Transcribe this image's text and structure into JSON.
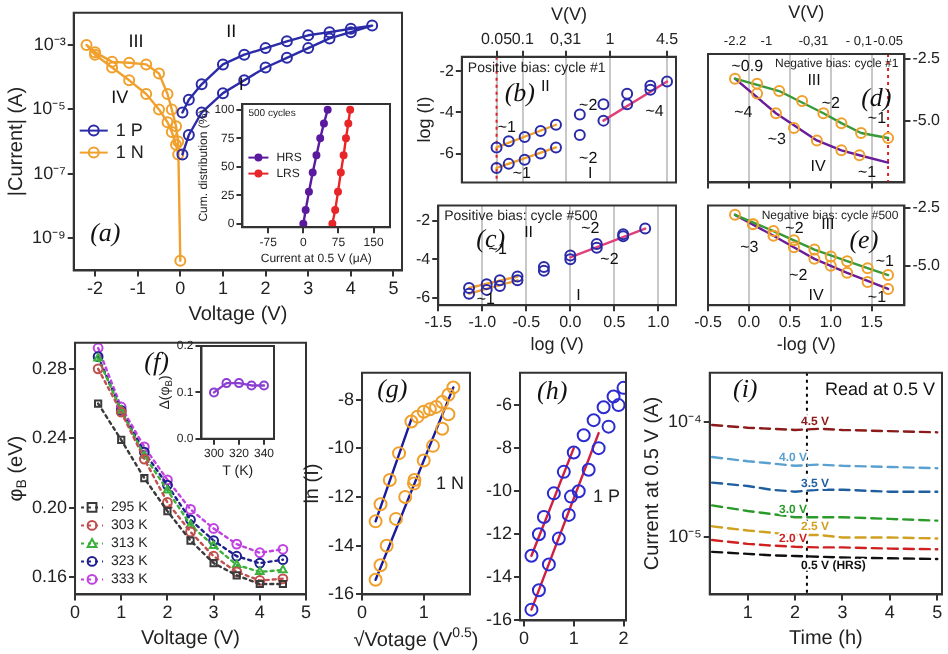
{
  "chart_data": [
    {
      "type": "line",
      "xlabel": "Voltage (V)",
      "ylabel": "|Current| (A)",
      "log": "y",
      "xlim": [
        -2.5,
        5.2
      ],
      "xticks": [
        -2,
        -1,
        0,
        1,
        2,
        3,
        4,
        5
      ],
      "ylim": [
        1e-10,
        0.01
      ],
      "yticks": [
        {
          "value": 1e-09,
          "label": "10⁻⁹"
        },
        {
          "value": 1e-07,
          "label": "10⁻⁷"
        },
        {
          "value": 1e-05,
          "label": "10⁻⁵"
        },
        {
          "value": 0.001,
          "label": "10⁻³"
        }
      ],
      "marker": "circle",
      "legend": "left",
      "annotations": [
        "(a)",
        "I",
        "II",
        "III",
        "IV"
      ],
      "series": [
        {
          "name": "1 P",
          "color": "#2b2ba8",
          "x": [
            0.05,
            0.2,
            0.5,
            1,
            1.5,
            2,
            2.5,
            3,
            3.5,
            4,
            4.5,
            4,
            3.5,
            3,
            2.5,
            2,
            1.5,
            1,
            0.5,
            0.2,
            0.05
          ],
          "values": [
            4e-07,
            1.6e-06,
            8e-06,
            3.2e-05,
            8e-05,
            0.0002,
            0.0004,
            0.0008,
            0.0016,
            0.0025,
            0.004,
            0.0032,
            0.0025,
            0.002,
            0.0013,
            0.0008,
            0.0005,
            0.00025,
            6e-05,
            2e-05,
            8e-06
          ]
        },
        {
          "name": "1 N",
          "color": "#f0a02c",
          "x": [
            0,
            -0.05,
            -0.1,
            -0.2,
            -0.3,
            -0.5,
            -0.8,
            -1.2,
            -1.6,
            -2,
            -2.2,
            -2,
            -1.6,
            -1.2,
            -0.8,
            -0.5,
            -0.3,
            -0.2,
            -0.1,
            -0.05
          ],
          "values": [
            2e-10,
            1e-06,
            3e-06,
            1e-05,
            3e-05,
            0.00013,
            0.00025,
            0.00028,
            0.0003,
            0.0006,
            0.001,
            0.0005,
            0.0002,
            8e-05,
            3e-05,
            1e-05,
            4e-06,
            2e-06,
            8e-07,
            4e-07
          ]
        }
      ]
    },
    {
      "type": "line",
      "title": "500 cycles",
      "xlabel": "Current at 0.5 V (μA)",
      "ylabel": "Cum. distribution (%)",
      "xlim": [
        -130,
        185
      ],
      "xticks": [
        -75,
        0,
        75,
        150
      ],
      "ylim": [
        -3,
        105
      ],
      "yticks": [
        0,
        25,
        50,
        75,
        100
      ],
      "marker": "circle",
      "legend": "left",
      "series": [
        {
          "name": "HRS",
          "color": "#5b1a9e",
          "x": [
            0,
            5,
            12,
            20,
            28,
            36,
            44,
            52
          ],
          "values": [
            0,
            12,
            28,
            45,
            60,
            75,
            88,
            100
          ]
        },
        {
          "name": "LRS",
          "color": "#e8262a",
          "x": [
            62,
            68,
            74,
            80,
            86,
            91,
            96,
            100
          ],
          "values": [
            0,
            12,
            28,
            45,
            60,
            75,
            88,
            100
          ]
        }
      ]
    },
    {
      "type": "scatter",
      "title": "Positive bias: cycle #1",
      "xlabel": "V(V)",
      "ylabel": "log (I)",
      "log": "x",
      "xlim": [
        0.02,
        5.7
      ],
      "xticks": [
        0.05,
        0.1,
        {
          "value": 0.31,
          "label": "0,31"
        },
        1,
        4.5
      ],
      "ylim": [
        -7.4,
        -1.3
      ],
      "yticks": [
        -2,
        -4,
        -6
      ],
      "grid": "x",
      "marker": "circle",
      "ref_lines": [
        {
          "axis": "x",
          "value": 0.05,
          "color": "#e02020",
          "line_style": "dotted"
        }
      ],
      "annotations": [
        "(b)",
        "II",
        "I",
        "~2",
        "~1",
        "~1",
        "~2",
        "~4"
      ],
      "series": [
        {
          "color": "#2b2ba8",
          "x": [
            0.05,
            0.069,
            0.105,
            0.16,
            0.24,
            0.45,
            0.84,
            1.57,
            2.9,
            4.5,
            2.9,
            1.57,
            0.84,
            0.45,
            0.24,
            0.16,
            0.105,
            0.069,
            0.05
          ],
          "values": [
            -6.7,
            -6.5,
            -6.3,
            -6.0,
            -5.7,
            -5.1,
            -4.4,
            -3.6,
            -2.9,
            -2.5,
            -2.7,
            -3.1,
            -3.6,
            -4.1,
            -4.6,
            -4.9,
            -5.2,
            -5.4,
            -5.7
          ]
        },
        {
          "type": "line",
          "color": "#f0a02c",
          "marker": "none",
          "x": [
            0.05,
            0.24
          ],
          "values": [
            -6.7,
            -5.7
          ]
        },
        {
          "type": "line",
          "color": "#f0a02c",
          "marker": "none",
          "x": [
            0.05,
            0.24
          ],
          "values": [
            -5.7,
            -4.6
          ]
        },
        {
          "type": "line",
          "color": "#e0407a",
          "marker": "none",
          "x": [
            0.84,
            4.5
          ],
          "values": [
            -4.4,
            -2.5
          ]
        }
      ]
    },
    {
      "type": "scatter",
      "title": "Negative bias: cycle #1",
      "xlim": [
        -0.5,
        1.9
      ],
      "xticks": [
        -0.5,
        0,
        0.5,
        1,
        1.5
      ],
      "tick_labels": "y",
      "ylim": [
        -7.5,
        -2.3
      ],
      "yticks": [
        -2.5,
        {
          "value": -5,
          "label": "-5.0"
        }
      ],
      "grid": "x",
      "marker": "circle",
      "ref_lines": [
        {
          "axis": "x",
          "value": 1.7,
          "color": "#e02020",
          "line_style": "dotted"
        }
      ],
      "annotations": [
        "(d)",
        "III",
        "IV",
        "~0.9",
        "~2",
        "~1",
        "~4",
        "~3",
        "~1",
        "V(V)",
        "-2.2",
        "-1",
        "-0,31",
        "- 0,1",
        "-0.05"
      ],
      "series": [
        {
          "color": "#f0a02c",
          "x": [
            -0.17,
            0.1,
            0.37,
            0.65,
            0.91,
            1.13,
            1.37,
            1.7,
            1.35,
            1.13,
            0.83,
            0.55,
            0.33,
            0.1
          ],
          "values": [
            -3.3,
            -3.5,
            -3.8,
            -4.2,
            -4.7,
            -5.1,
            -5.5,
            -5.7,
            -6.4,
            -6.2,
            -5.8,
            -5.3,
            -4.7,
            -3.9
          ]
        },
        {
          "type": "line",
          "color": "#3a9a3a",
          "marker": "none",
          "x": [
            -0.17,
            0.37,
            0.91,
            1.13,
            1.37,
            1.7
          ],
          "values": [
            -3.3,
            -3.8,
            -4.7,
            -5.1,
            -5.5,
            -5.7
          ]
        },
        {
          "type": "line",
          "color": "#6a1b9a",
          "marker": "none",
          "x": [
            -0.17,
            0.33,
            0.83,
            1.13,
            1.35,
            1.7
          ],
          "values": [
            -3.3,
            -4.7,
            -5.8,
            -6.2,
            -6.4,
            -6.7
          ]
        }
      ]
    },
    {
      "type": "scatter",
      "title": "Positive bias: cycle #500",
      "xlabel": "log (V)",
      "xlim": [
        -1.5,
        1.2
      ],
      "xticks": [
        {
          "value": -1.5,
          "label": "-1.5"
        },
        {
          "value": -1,
          "label": "-1.0"
        },
        -0.5,
        {
          "value": 0,
          "label": "0.0"
        },
        0.5,
        {
          "value": 1,
          "label": "1.0"
        }
      ],
      "ylim": [
        -6.4,
        -1.2
      ],
      "yticks": [
        -2,
        -4,
        -6
      ],
      "grid": "x",
      "marker": "circle",
      "annotations": [
        "(c)",
        "II",
        "~2",
        "~1",
        "~1",
        "~2",
        "I"
      ],
      "series": [
        {
          "color": "#2b2ba8",
          "x": [
            -1.15,
            -0.95,
            -0.8,
            -0.6,
            -0.3,
            0,
            0.3,
            0.6,
            0.85,
            0.6,
            0.3,
            0,
            -0.3,
            -0.6,
            -0.8,
            -0.95,
            -1.15
          ],
          "values": [
            -5.8,
            -5.6,
            -5.4,
            -5.1,
            -4.6,
            -4.0,
            -3.4,
            -2.8,
            -2.4,
            -2.7,
            -3.2,
            -3.8,
            -4.4,
            -4.9,
            -5.1,
            -5.3,
            -5.5
          ]
        },
        {
          "type": "line",
          "color": "#f0a02c",
          "marker": "none",
          "x": [
            -1.15,
            -0.6
          ],
          "values": [
            -5.8,
            -5.1
          ]
        },
        {
          "type": "line",
          "color": "#f0a02c",
          "marker": "none",
          "x": [
            -1.15,
            -0.6
          ],
          "values": [
            -5.5,
            -4.9
          ]
        },
        {
          "type": "line",
          "color": "#e0407a",
          "marker": "none",
          "x": [
            0,
            0.85
          ],
          "values": [
            -3.9,
            -2.4
          ]
        }
      ]
    },
    {
      "type": "scatter",
      "title": "Negative bias: cycle #500",
      "xlabel": "-log (V)",
      "xlim": [
        -0.5,
        1.9
      ],
      "xticks": [
        -0.5,
        {
          "value": 0,
          "label": "0.0"
        },
        0.5,
        {
          "value": 1,
          "label": "1.0"
        },
        1.5
      ],
      "ylim": [
        -6.7,
        -2.4
      ],
      "yticks": [
        -2.5,
        {
          "value": -5,
          "label": "-5.0"
        }
      ],
      "grid": "x",
      "marker": "circle",
      "annotations": [
        "(e)",
        "III",
        "IV",
        "~2",
        "~3",
        "~2",
        "~1",
        "~1"
      ],
      "series": [
        {
          "color": "#f0a02c",
          "x": [
            -0.17,
            0.05,
            0.3,
            0.55,
            0.8,
            1.0,
            1.2,
            1.45,
            1.7,
            1.7,
            1.45,
            1.2,
            1.0,
            0.8,
            0.55,
            0.3,
            0.05
          ],
          "values": [
            -2.8,
            -3.2,
            -3.5,
            -3.9,
            -4.3,
            -4.6,
            -4.8,
            -5.1,
            -5.4,
            -6.0,
            -5.7,
            -5.3,
            -5.0,
            -4.7,
            -4.2,
            -3.7,
            -3.2
          ]
        },
        {
          "type": "line",
          "color": "#3a9a3a",
          "marker": "none",
          "x": [
            -0.17,
            0.3,
            0.8,
            1.2,
            1.7
          ],
          "values": [
            -2.8,
            -3.5,
            -4.3,
            -4.8,
            -5.4
          ]
        },
        {
          "type": "line",
          "color": "#6a1b9a",
          "marker": "none",
          "x": [
            -0.17,
            0.3,
            0.8,
            1.2,
            1.7
          ],
          "values": [
            -2.8,
            -3.7,
            -4.7,
            -5.3,
            -6.0
          ]
        }
      ]
    },
    {
      "type": "line",
      "xlabel": "Voltage (V)",
      "ylabel": "φ$_{B}$ (eV)",
      "xlim": [
        0,
        5
      ],
      "xticks": [
        0,
        1,
        2,
        3,
        4,
        5
      ],
      "ylim": [
        0.15,
        0.295
      ],
      "yticks": [
        {
          "value": 0.16,
          "label": "0.16"
        },
        {
          "value": 0.2,
          "label": "0.20"
        },
        {
          "value": 0.24,
          "label": "0.24"
        },
        {
          "value": 0.28,
          "label": "0.28"
        }
      ],
      "x": [
        0.5,
        1,
        1.5,
        2,
        2.5,
        3,
        3.5,
        4,
        4.5
      ],
      "line_style": "dotted",
      "legend": "bottom left",
      "annotations": [
        "(f)"
      ],
      "series": [
        {
          "name": "295 K",
          "color": "#3a3a3a",
          "marker": "square",
          "values": [
            0.26,
            0.239,
            0.217,
            0.198,
            0.181,
            0.168,
            0.161,
            0.156,
            0.156
          ]
        },
        {
          "name": "303 K",
          "color": "#c0504d",
          "marker": "circle",
          "values": [
            0.28,
            0.255,
            0.228,
            0.203,
            0.186,
            0.172,
            0.163,
            0.158,
            0.159
          ]
        },
        {
          "name": "313 K",
          "color": "#3cb03c",
          "marker": "triangle",
          "values": [
            0.286,
            0.256,
            0.23,
            0.21,
            0.19,
            0.178,
            0.167,
            0.163,
            0.164
          ]
        },
        {
          "name": "323 K",
          "color": "#1f1f8f",
          "marker": "circle",
          "values": [
            0.287,
            0.256,
            0.232,
            0.213,
            0.193,
            0.181,
            0.172,
            0.168,
            0.17
          ]
        },
        {
          "name": "333 K",
          "color": "#c040e0",
          "marker": "circle",
          "values": [
            0.292,
            0.258,
            0.235,
            0.216,
            0.199,
            0.188,
            0.179,
            0.174,
            0.176
          ]
        }
      ]
    },
    {
      "type": "line",
      "xlabel": "T (K)",
      "ylabel": "Δ(φ$_{B}$)",
      "xlim": [
        290,
        348
      ],
      "xticks": [
        300,
        320,
        340
      ],
      "ylim": [
        0,
        0.2
      ],
      "yticks": [
        {
          "value": 0,
          "label": "0.0"
        },
        0.1,
        0.2
      ],
      "marker": "circle",
      "series": [
        {
          "color": "#8a3fd1",
          "x": [
            300,
            310,
            320,
            330,
            340
          ],
          "values": [
            0.1,
            0.12,
            0.12,
            0.115,
            0.115
          ]
        }
      ]
    },
    {
      "type": "scatter",
      "xlabel": "√Votage (V$^{0.5}$)",
      "ylabel": "ln (I)",
      "xlim": [
        0,
        1.75
      ],
      "xticks": [
        0,
        1
      ],
      "ylim": [
        -16,
        -6.9
      ],
      "yticks": [
        -8,
        -10,
        -12,
        -14,
        -16
      ],
      "marker": "circle",
      "legend": "right",
      "annotations": [
        "(g)"
      ],
      "series": [
        {
          "name": "1 N",
          "color": "#f0a02c",
          "x": [
            0.22,
            0.3,
            0.4,
            0.55,
            0.7,
            0.85,
            1.0,
            1.15,
            1.3,
            1.4,
            1.48,
            1.4,
            1.3,
            1.2,
            1.1,
            1.0,
            0.9,
            0.8,
            0.6,
            0.45,
            0.3,
            0.22
          ],
          "values": [
            -15.4,
            -14.8,
            -14.0,
            -12.9,
            -12.0,
            -11.3,
            -10.5,
            -9.9,
            -9.2,
            -8.6,
            -7.5,
            -7.8,
            -8.1,
            -8.3,
            -8.4,
            -8.5,
            -8.7,
            -8.9,
            -10.2,
            -11.3,
            -12.3,
            -13.0
          ]
        },
        {
          "type": "line",
          "color": "#1a1a9a",
          "marker": "none",
          "x": [
            0.22,
            0.8
          ],
          "values": [
            -13.0,
            -8.8
          ]
        },
        {
          "type": "line",
          "color": "#1a1a9a",
          "marker": "none",
          "x": [
            0.22,
            1.48
          ],
          "values": [
            -15.4,
            -7.5
          ]
        }
      ]
    },
    {
      "type": "scatter",
      "xlim": [
        -0.08,
        2.05
      ],
      "xticks": [
        0,
        1,
        2
      ],
      "ylim": [
        -16,
        -4.5
      ],
      "yticks": [
        -6,
        -8,
        -10,
        -12,
        -14,
        -16
      ],
      "marker": "circle",
      "legend": "right",
      "annotations": [
        "(h)"
      ],
      "series": [
        {
          "name": "1 P",
          "color": "#2b2bd0",
          "x": [
            0.15,
            0.3,
            0.5,
            0.7,
            0.9,
            1.1,
            1.3,
            1.5,
            1.7,
            1.9,
            2.0,
            1.8,
            1.6,
            1.4,
            1.2,
            1.0,
            0.8,
            0.6,
            0.4,
            0.3,
            0.15
          ],
          "values": [
            -15.5,
            -14.6,
            -13.4,
            -12.2,
            -11.1,
            -10.0,
            -9.0,
            -8.0,
            -7.0,
            -6.0,
            -5.2,
            -5.6,
            -6.1,
            -6.7,
            -7.4,
            -8.2,
            -9.1,
            -10.1,
            -11.2,
            -12.0,
            -13.0
          ]
        },
        {
          "type": "line",
          "color": "#d02040",
          "marker": "none",
          "x": [
            0.15,
            1.0
          ],
          "values": [
            -13.0,
            -8.0
          ]
        },
        {
          "type": "line",
          "color": "#d02040",
          "marker": "none",
          "x": [
            0.15,
            1.5
          ],
          "values": [
            -15.5,
            -7.3
          ]
        }
      ]
    },
    {
      "type": "line",
      "xlabel": "Time (h)",
      "ylabel": "Current at 0.5 V (A)",
      "log": "y",
      "xlim": [
        0.2,
        5.1
      ],
      "xticks": [
        1,
        2,
        3,
        4,
        5
      ],
      "ylim": [
        3.2e-06,
        0.00027
      ],
      "yticks": [
        {
          "value": 0.0001,
          "label": "10⁻⁴"
        },
        {
          "value": 1e-05,
          "label": "10⁻⁵"
        }
      ],
      "x": [
        0.25,
        1,
        1.5,
        2,
        2.5,
        3,
        4,
        5
      ],
      "line_style": "dashed",
      "marker": "none",
      "ref_lines": [
        {
          "axis": "x",
          "value": 2.25,
          "color": "#000000",
          "line_style": "dotted"
        }
      ],
      "annotations": [
        "(i)",
        "Read at 0.5 V"
      ],
      "series": [
        {
          "name": "4.5 V",
          "color": "#8b1a1a",
          "values": [
            9.5e-05,
            9e-05,
            8.8e-05,
            8.6e-05,
            8.8e-05,
            8.6e-05,
            8.4e-05,
            8.2e-05
          ]
        },
        {
          "name": "4.0 V",
          "color": "#5aa0d0",
          "values": [
            5e-05,
            4.6e-05,
            4.4e-05,
            4.2e-05,
            4.3e-05,
            4.2e-05,
            4.1e-05,
            4e-05
          ]
        },
        {
          "name": "3.5 V",
          "color": "#1f5f9f",
          "values": [
            3e-05,
            2.8e-05,
            2.6e-05,
            2.5e-05,
            2.6e-05,
            2.6e-05,
            2.5e-05,
            2.5e-05
          ]
        },
        {
          "name": "3.0 V",
          "color": "#2a9a2a",
          "values": [
            1.9e-05,
            1.7e-05,
            1.6e-05,
            1.5e-05,
            1.5e-05,
            1.5e-05,
            1.45e-05,
            1.4e-05
          ]
        },
        {
          "name": "2.5 V",
          "color": "#d0a020",
          "values": [
            1.25e-05,
            1.15e-05,
            1.1e-05,
            1.05e-05,
            1.05e-05,
            1e-05,
            1e-05,
            9.8e-06
          ]
        },
        {
          "name": "2.0 V",
          "color": "#d02020",
          "values": [
            9.5e-06,
            8.8e-06,
            8.5e-06,
            8.3e-06,
            8.2e-06,
            8.2e-06,
            8e-06,
            7.9e-06
          ]
        },
        {
          "name": "0.5 V (HRS)",
          "color": "#101010",
          "values": [
            7.5e-06,
            7.2e-06,
            7e-06,
            6.9e-06,
            6.8e-06,
            6.7e-06,
            6.6e-06,
            6.5e-06
          ]
        }
      ]
    }
  ]
}
